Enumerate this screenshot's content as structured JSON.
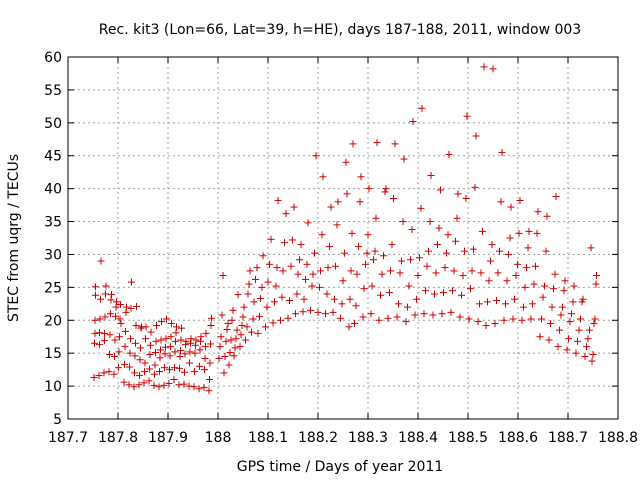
{
  "chart_data": {
    "type": "scatter",
    "title": "Rec. kit3 (Lon=66, Lat=39, h=HE), days 187-188, 2011, window 003",
    "xlabel": "GPS time / Days of year 2011",
    "ylabel": "STEC from uqrg / TECUs",
    "xlim": [
      187.7,
      188.8
    ],
    "ylim": [
      5,
      60
    ],
    "xticks": [
      "187.7",
      "187.8",
      "187.9",
      "188",
      "188.1",
      "188.2",
      "188.3",
      "188.4",
      "188.5",
      "188.6",
      "188.7",
      "188.8"
    ],
    "yticks": [
      "5",
      "10",
      "15",
      "20",
      "25",
      "30",
      "35",
      "40",
      "45",
      "50",
      "55",
      "60"
    ],
    "grid": true,
    "marker": "+",
    "color": "#cc0000",
    "points": [
      [
        187.752,
        11.3
      ],
      [
        187.753,
        16.5
      ],
      [
        187.754,
        18.0
      ],
      [
        187.754,
        20.0
      ],
      [
        187.755,
        23.8
      ],
      [
        187.755,
        25.1
      ],
      [
        187.762,
        11.6
      ],
      [
        187.763,
        16.3
      ],
      [
        187.763,
        18.1
      ],
      [
        187.764,
        20.2
      ],
      [
        187.765,
        23.2
      ],
      [
        187.766,
        29.0
      ],
      [
        187.772,
        12.0
      ],
      [
        187.773,
        16.9
      ],
      [
        187.773,
        18.0
      ],
      [
        187.774,
        20.5
      ],
      [
        187.775,
        24.0
      ],
      [
        187.776,
        25.2
      ],
      [
        187.782,
        12.2
      ],
      [
        187.783,
        14.8
      ],
      [
        187.784,
        17.8
      ],
      [
        187.785,
        21.0
      ],
      [
        187.786,
        23.1
      ],
      [
        187.787,
        23.9
      ],
      [
        187.792,
        11.8
      ],
      [
        187.793,
        14.5
      ],
      [
        187.794,
        17.0
      ],
      [
        187.795,
        20.6
      ],
      [
        187.796,
        22.0
      ],
      [
        187.797,
        22.8
      ],
      [
        187.801,
        12.8
      ],
      [
        187.802,
        15.2
      ],
      [
        187.803,
        17.5
      ],
      [
        187.804,
        20.2
      ],
      [
        187.805,
        22.4
      ],
      [
        187.806,
        19.5
      ],
      [
        187.812,
        10.6
      ],
      [
        187.813,
        13.3
      ],
      [
        187.814,
        16.0
      ],
      [
        187.815,
        18.3
      ],
      [
        187.816,
        21.2
      ],
      [
        187.817,
        22.0
      ],
      [
        187.822,
        10.2
      ],
      [
        187.823,
        12.9
      ],
      [
        187.824,
        15.0
      ],
      [
        187.825,
        17.2
      ],
      [
        187.826,
        21.8
      ],
      [
        187.827,
        25.8
      ],
      [
        187.832,
        9.9
      ],
      [
        187.833,
        12.0
      ],
      [
        187.834,
        14.6
      ],
      [
        187.835,
        16.5
      ],
      [
        187.836,
        19.2
      ],
      [
        187.837,
        22.1
      ],
      [
        187.842,
        10.2
      ],
      [
        187.843,
        11.6
      ],
      [
        187.844,
        14.0
      ],
      [
        187.845,
        15.8
      ],
      [
        187.846,
        18.8
      ],
      [
        187.847,
        19.0
      ],
      [
        187.852,
        10.5
      ],
      [
        187.853,
        12.2
      ],
      [
        187.854,
        13.5
      ],
      [
        187.855,
        17.2
      ],
      [
        187.856,
        19.0
      ],
      [
        187.862,
        10.8
      ],
      [
        187.863,
        12.6
      ],
      [
        187.864,
        14.8
      ],
      [
        187.865,
        16.2
      ],
      [
        187.866,
        18.2
      ],
      [
        187.872,
        10.1
      ],
      [
        187.873,
        11.8
      ],
      [
        187.874,
        13.2
      ],
      [
        187.875,
        15.1
      ],
      [
        187.876,
        16.8
      ],
      [
        187.877,
        19.2
      ],
      [
        187.882,
        9.9
      ],
      [
        187.883,
        12.2
      ],
      [
        187.884,
        14.3
      ],
      [
        187.885,
        15.5
      ],
      [
        187.886,
        17.0
      ],
      [
        187.887,
        19.8
      ],
      [
        187.892,
        10.1
      ],
      [
        187.893,
        12.8
      ],
      [
        187.894,
        14.9
      ],
      [
        187.895,
        15.9
      ],
      [
        187.896,
        17.2
      ],
      [
        187.897,
        20.2
      ],
      [
        187.902,
        10.4
      ],
      [
        187.903,
        12.5
      ],
      [
        187.904,
        14.6
      ],
      [
        187.905,
        16.0
      ],
      [
        187.906,
        17.5
      ],
      [
        187.907,
        19.5
      ],
      [
        187.912,
        11.0
      ],
      [
        187.913,
        12.8
      ],
      [
        187.914,
        15.2
      ],
      [
        187.915,
        16.8
      ],
      [
        187.916,
        18.1
      ],
      [
        187.917,
        19.0
      ],
      [
        187.922,
        10.2
      ],
      [
        187.923,
        12.7
      ],
      [
        187.924,
        14.5
      ],
      [
        187.925,
        15.4
      ],
      [
        187.926,
        17.0
      ],
      [
        187.927,
        18.8
      ],
      [
        187.932,
        10.3
      ],
      [
        187.933,
        12.1
      ],
      [
        187.934,
        14.9
      ],
      [
        187.935,
        16.3
      ],
      [
        187.936,
        16.8
      ],
      [
        187.942,
        10.0
      ],
      [
        187.943,
        13.5
      ],
      [
        187.944,
        15.2
      ],
      [
        187.945,
        16.5
      ],
      [
        187.946,
        17.2
      ],
      [
        187.952,
        9.9
      ],
      [
        187.953,
        12.2
      ],
      [
        187.954,
        15.0
      ],
      [
        187.955,
        16.2
      ],
      [
        187.956,
        17.0
      ],
      [
        187.962,
        9.6
      ],
      [
        187.963,
        13.0
      ],
      [
        187.964,
        15.5
      ],
      [
        187.965,
        16.8
      ],
      [
        187.966,
        17.5
      ],
      [
        187.972,
        9.8
      ],
      [
        187.973,
        12.5
      ],
      [
        187.974,
        14.2
      ],
      [
        187.975,
        16.0
      ],
      [
        187.976,
        18.0
      ],
      [
        187.982,
        9.3
      ],
      [
        187.983,
        11.0
      ],
      [
        187.984,
        13.5
      ],
      [
        187.985,
        16.4
      ],
      [
        187.986,
        19.2
      ],
      [
        187.987,
        20.3
      ],
      [
        188.002,
        14.2
      ],
      [
        188.004,
        16.0
      ],
      [
        188.006,
        17.5
      ],
      [
        188.008,
        20.8
      ],
      [
        188.01,
        26.8
      ],
      [
        188.012,
        12.0
      ],
      [
        188.014,
        14.5
      ],
      [
        188.016,
        16.8
      ],
      [
        188.018,
        18.6
      ],
      [
        188.02,
        19.5
      ],
      [
        188.022,
        13.2
      ],
      [
        188.024,
        15.1
      ],
      [
        188.026,
        17.0
      ],
      [
        188.028,
        20.0
      ],
      [
        188.03,
        21.5
      ],
      [
        188.032,
        14.6
      ],
      [
        188.034,
        15.8
      ],
      [
        188.036,
        17.2
      ],
      [
        188.038,
        18.5
      ],
      [
        188.04,
        23.9
      ],
      [
        188.044,
        16.0
      ],
      [
        188.046,
        17.8
      ],
      [
        188.048,
        19.2
      ],
      [
        188.05,
        20.5
      ],
      [
        188.052,
        22.0
      ],
      [
        188.055,
        17.0
      ],
      [
        188.058,
        19.0
      ],
      [
        188.06,
        24.0
      ],
      [
        188.062,
        25.5
      ],
      [
        188.064,
        27.5
      ],
      [
        188.067,
        18.2
      ],
      [
        188.07,
        20.2
      ],
      [
        188.072,
        22.8
      ],
      [
        188.075,
        26.2
      ],
      [
        188.078,
        28.0
      ],
      [
        188.08,
        18.0
      ],
      [
        188.083,
        20.6
      ],
      [
        188.085,
        23.3
      ],
      [
        188.088,
        25.0
      ],
      [
        188.09,
        29.8
      ],
      [
        188.095,
        19.0
      ],
      [
        188.098,
        22.0
      ],
      [
        188.1,
        25.8
      ],
      [
        188.103,
        28.5
      ],
      [
        188.106,
        32.3
      ],
      [
        188.11,
        19.6
      ],
      [
        188.113,
        22.8
      ],
      [
        188.116,
        25.2
      ],
      [
        188.118,
        28.0
      ],
      [
        188.12,
        38.2
      ],
      [
        188.125,
        20.0
      ],
      [
        188.128,
        23.5
      ],
      [
        188.13,
        27.5
      ],
      [
        188.133,
        31.8
      ],
      [
        188.136,
        36.2
      ],
      [
        188.14,
        20.3
      ],
      [
        188.143,
        23.0
      ],
      [
        188.146,
        28.2
      ],
      [
        188.149,
        32.2
      ],
      [
        188.152,
        37.2
      ],
      [
        188.155,
        21.0
      ],
      [
        188.158,
        24.0
      ],
      [
        188.16,
        27.0
      ],
      [
        188.163,
        29.2
      ],
      [
        188.166,
        31.5
      ],
      [
        188.17,
        21.3
      ],
      [
        188.172,
        23.2
      ],
      [
        188.175,
        26.2
      ],
      [
        188.178,
        28.5
      ],
      [
        188.18,
        34.8
      ],
      [
        188.185,
        21.5
      ],
      [
        188.188,
        25.2
      ],
      [
        188.19,
        27.0
      ],
      [
        188.193,
        30.2
      ],
      [
        188.196,
        45.0
      ],
      [
        188.2,
        21.2
      ],
      [
        188.203,
        25.0
      ],
      [
        188.205,
        27.5
      ],
      [
        188.208,
        33.0
      ],
      [
        188.21,
        41.8
      ],
      [
        188.215,
        21.0
      ],
      [
        188.218,
        24.0
      ],
      [
        188.22,
        28.0
      ],
      [
        188.223,
        31.2
      ],
      [
        188.226,
        37.2
      ],
      [
        188.23,
        21.2
      ],
      [
        188.233,
        23.2
      ],
      [
        188.235,
        28.2
      ],
      [
        188.238,
        34.5
      ],
      [
        188.24,
        38.0
      ],
      [
        188.245,
        20.3
      ],
      [
        188.248,
        22.5
      ],
      [
        188.25,
        26.0
      ],
      [
        188.253,
        30.2
      ],
      [
        188.256,
        44.0
      ],
      [
        188.258,
        39.2
      ],
      [
        188.262,
        19.0
      ],
      [
        188.264,
        23.2
      ],
      [
        188.266,
        27.5
      ],
      [
        188.268,
        33.2
      ],
      [
        188.27,
        46.8
      ],
      [
        188.273,
        19.5
      ],
      [
        188.276,
        22.2
      ],
      [
        188.278,
        27.0
      ],
      [
        188.281,
        31.2
      ],
      [
        188.284,
        38.0
      ],
      [
        188.286,
        41.8
      ],
      [
        188.29,
        20.5
      ],
      [
        188.292,
        24.8
      ],
      [
        188.295,
        28.5
      ],
      [
        188.298,
        30.2
      ],
      [
        188.3,
        33.0
      ],
      [
        188.302,
        40.0
      ],
      [
        188.306,
        21.0
      ],
      [
        188.308,
        25.2
      ],
      [
        188.311,
        29.2
      ],
      [
        188.314,
        30.5
      ],
      [
        188.316,
        35.5
      ],
      [
        188.318,
        47.0
      ],
      [
        188.322,
        20.0
      ],
      [
        188.325,
        23.8
      ],
      [
        188.328,
        27.0
      ],
      [
        188.331,
        29.8
      ],
      [
        188.334,
        39.5
      ],
      [
        188.336,
        40.0
      ],
      [
        188.34,
        20.3
      ],
      [
        188.343,
        24.2
      ],
      [
        188.345,
        27.5
      ],
      [
        188.348,
        31.5
      ],
      [
        188.351,
        38.5
      ],
      [
        188.354,
        46.8
      ],
      [
        188.358,
        20.5
      ],
      [
        188.361,
        22.5
      ],
      [
        188.364,
        27.2
      ],
      [
        188.367,
        29.0
      ],
      [
        188.37,
        35.0
      ],
      [
        188.372,
        44.5
      ],
      [
        188.376,
        19.8
      ],
      [
        188.379,
        22.0
      ],
      [
        188.382,
        25.2
      ],
      [
        188.385,
        29.2
      ],
      [
        188.388,
        33.8
      ],
      [
        188.39,
        50.2
      ],
      [
        188.394,
        20.8
      ],
      [
        188.397,
        23.2
      ],
      [
        188.4,
        26.8
      ],
      [
        188.403,
        29.5
      ],
      [
        188.406,
        37.0
      ],
      [
        188.408,
        52.2
      ],
      [
        188.412,
        21.0
      ],
      [
        188.415,
        24.5
      ],
      [
        188.418,
        28.2
      ],
      [
        188.421,
        30.5
      ],
      [
        188.424,
        35.0
      ],
      [
        188.426,
        42.0
      ],
      [
        188.43,
        20.8
      ],
      [
        188.433,
        24.0
      ],
      [
        188.436,
        27.2
      ],
      [
        188.439,
        31.5
      ],
      [
        188.442,
        34.0
      ],
      [
        188.445,
        39.8
      ],
      [
        188.448,
        21.0
      ],
      [
        188.451,
        24.2
      ],
      [
        188.454,
        28.0
      ],
      [
        188.457,
        30.2
      ],
      [
        188.46,
        33.0
      ],
      [
        188.462,
        45.2
      ],
      [
        188.466,
        21.2
      ],
      [
        188.469,
        24.5
      ],
      [
        188.472,
        27.5
      ],
      [
        188.475,
        32.0
      ],
      [
        188.478,
        35.5
      ],
      [
        188.48,
        39.2
      ],
      [
        188.484,
        20.5
      ],
      [
        188.487,
        23.8
      ],
      [
        188.49,
        26.8
      ],
      [
        188.493,
        30.5
      ],
      [
        188.496,
        38.5
      ],
      [
        188.498,
        51.0
      ],
      [
        188.502,
        20.2
      ],
      [
        188.505,
        24.8
      ],
      [
        188.508,
        27.5
      ],
      [
        188.511,
        30.8
      ],
      [
        188.514,
        40.2
      ],
      [
        188.516,
        48.0
      ],
      [
        188.52,
        19.8
      ],
      [
        188.523,
        22.5
      ],
      [
        188.526,
        27.2
      ],
      [
        188.529,
        33.5
      ],
      [
        188.532,
        58.5
      ],
      [
        188.536,
        19.2
      ],
      [
        188.539,
        22.8
      ],
      [
        188.542,
        26.0
      ],
      [
        188.545,
        29.0
      ],
      [
        188.548,
        31.5
      ],
      [
        188.55,
        58.2
      ],
      [
        188.554,
        19.5
      ],
      [
        188.557,
        23.0
      ],
      [
        188.56,
        27.2
      ],
      [
        188.563,
        30.5
      ],
      [
        188.566,
        38.0
      ],
      [
        188.568,
        45.5
      ],
      [
        188.572,
        20.0
      ],
      [
        188.575,
        22.5
      ],
      [
        188.578,
        26.0
      ],
      [
        188.581,
        30.0
      ],
      [
        188.584,
        32.5
      ],
      [
        188.586,
        37.2
      ],
      [
        188.59,
        20.2
      ],
      [
        188.593,
        23.2
      ],
      [
        188.596,
        26.8
      ],
      [
        188.599,
        28.5
      ],
      [
        188.602,
        33.2
      ],
      [
        188.604,
        38.2
      ],
      [
        188.608,
        20.0
      ],
      [
        188.611,
        22.0
      ],
      [
        188.614,
        25.0
      ],
      [
        188.617,
        28.0
      ],
      [
        188.62,
        31.0
      ],
      [
        188.622,
        33.5
      ],
      [
        188.626,
        20.2
      ],
      [
        188.629,
        22.5
      ],
      [
        188.632,
        25.5
      ],
      [
        188.635,
        28.2
      ],
      [
        188.638,
        33.2
      ],
      [
        188.64,
        36.5
      ],
      [
        188.644,
        17.5
      ],
      [
        188.647,
        20.2
      ],
      [
        188.65,
        23.5
      ],
      [
        188.653,
        25.2
      ],
      [
        188.656,
        30.5
      ],
      [
        188.658,
        35.8
      ],
      [
        188.662,
        17.0
      ],
      [
        188.665,
        19.5
      ],
      [
        188.668,
        22.0
      ],
      [
        188.671,
        24.8
      ],
      [
        188.674,
        27.0
      ],
      [
        188.676,
        38.8
      ],
      [
        188.68,
        16.0
      ],
      [
        188.683,
        18.5
      ],
      [
        188.686,
        20.8
      ],
      [
        188.689,
        22.0
      ],
      [
        188.692,
        24.5
      ],
      [
        188.694,
        26.0
      ],
      [
        188.698,
        15.5
      ],
      [
        188.701,
        17.2
      ],
      [
        188.704,
        19.8
      ],
      [
        188.707,
        21.0
      ],
      [
        188.71,
        22.8
      ],
      [
        188.712,
        25.2
      ],
      [
        188.716,
        15.0
      ],
      [
        188.719,
        16.8
      ],
      [
        188.722,
        18.5
      ],
      [
        188.725,
        20.2
      ],
      [
        188.728,
        22.8
      ],
      [
        188.73,
        23.2
      ],
      [
        188.734,
        14.5
      ],
      [
        188.737,
        16.0
      ],
      [
        188.74,
        17.2
      ],
      [
        188.743,
        18.5
      ],
      [
        188.746,
        31.0
      ],
      [
        188.748,
        13.8
      ],
      [
        188.75,
        14.8
      ],
      [
        188.752,
        19.5
      ],
      [
        188.754,
        20.2
      ],
      [
        188.756,
        25.5
      ],
      [
        188.757,
        26.8
      ]
    ]
  }
}
